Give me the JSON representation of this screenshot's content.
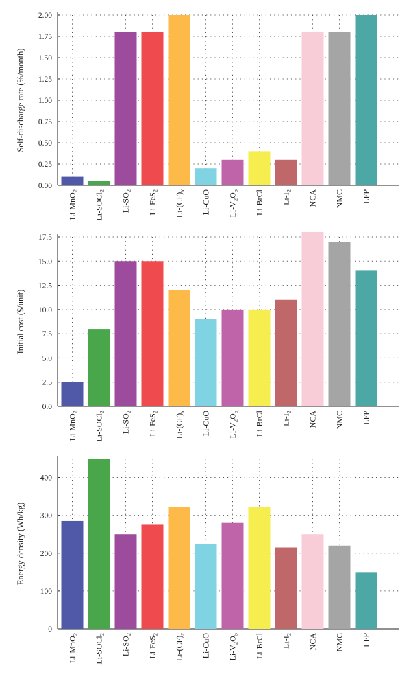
{
  "chart_data": [
    {
      "type": "bar",
      "ylabel": "Self-discharge rate (%/month)",
      "ylim": [
        0,
        2.0
      ],
      "yticks": [
        "0.00",
        "0.25",
        "0.50",
        "0.75",
        "1.00",
        "1.25",
        "1.50",
        "1.75",
        "2.00"
      ],
      "grid": true,
      "categories": [
        {
          "pre": "Li-MnO",
          "sub": "2"
        },
        {
          "pre": "Li-SOCl",
          "sub": "2"
        },
        {
          "pre": "Li-SO",
          "sub": "2"
        },
        {
          "pre": "Li-FeS",
          "sub": "2"
        },
        {
          "pre": "Li-(CF)",
          "sub": "x"
        },
        {
          "pre": "Li-CuO",
          "sub": ""
        },
        {
          "pre": "Li-V",
          "sub": "2",
          "mid": "O",
          "sub2": "5"
        },
        {
          "pre": "Li-BrCl",
          "sub": ""
        },
        {
          "pre": "Li-I",
          "sub": "2"
        },
        {
          "pre": "NCA",
          "sub": ""
        },
        {
          "pre": "NMC",
          "sub": ""
        },
        {
          "pre": "LFP",
          "sub": ""
        }
      ],
      "values": [
        0.1,
        0.05,
        1.8,
        1.8,
        2.0,
        0.2,
        0.3,
        0.4,
        0.3,
        1.8,
        1.8,
        2.0
      ]
    },
    {
      "type": "bar",
      "ylabel": "Initial cost ($/unit)",
      "ylim": [
        0,
        17.5
      ],
      "yticks": [
        "0.0",
        "2.5",
        "5.0",
        "7.5",
        "10.0",
        "12.5",
        "15.0",
        "17.5"
      ],
      "grid": true,
      "categories": [
        {
          "pre": "Li-MnO",
          "sub": "2"
        },
        {
          "pre": "Li-SOCl",
          "sub": "2"
        },
        {
          "pre": "Li-SO",
          "sub": "2"
        },
        {
          "pre": "Li-FeS",
          "sub": "2"
        },
        {
          "pre": "Li-(CF)",
          "sub": "x"
        },
        {
          "pre": "Li-CuO",
          "sub": ""
        },
        {
          "pre": "Li-V",
          "sub": "2",
          "mid": "O",
          "sub2": "5"
        },
        {
          "pre": "Li-BrCl",
          "sub": ""
        },
        {
          "pre": "Li-I",
          "sub": "2"
        },
        {
          "pre": "NCA",
          "sub": ""
        },
        {
          "pre": "NMC",
          "sub": ""
        },
        {
          "pre": "LFP",
          "sub": ""
        }
      ],
      "values": [
        2.5,
        8.0,
        15.0,
        15.0,
        12.0,
        9.0,
        10.0,
        10.0,
        11.0,
        18.0,
        17.0,
        14.0
      ]
    },
    {
      "type": "bar",
      "ylabel": "Energy density (Wh/kg)",
      "ylim": [
        0,
        450
      ],
      "yticks": [
        "0",
        "100",
        "200",
        "300",
        "400"
      ],
      "grid": true,
      "categories": [
        {
          "pre": "Li-MnO",
          "sub": "2"
        },
        {
          "pre": "Li-SOCl",
          "sub": "2"
        },
        {
          "pre": "Li-SO",
          "sub": "2"
        },
        {
          "pre": "Li-FeS",
          "sub": "2"
        },
        {
          "pre": "Li-(CF)",
          "sub": "x"
        },
        {
          "pre": "Li-CuO",
          "sub": ""
        },
        {
          "pre": "Li-V",
          "sub": "2",
          "mid": "O",
          "sub2": "5"
        },
        {
          "pre": "Li-BrCl",
          "sub": ""
        },
        {
          "pre": "Li-I",
          "sub": "2"
        },
        {
          "pre": "NCA",
          "sub": ""
        },
        {
          "pre": "NMC",
          "sub": ""
        },
        {
          "pre": "LFP",
          "sub": ""
        }
      ],
      "values": [
        285,
        450,
        250,
        275,
        322,
        225,
        280,
        322,
        215,
        250,
        220,
        150
      ]
    }
  ],
  "colors": [
    "#5059a8",
    "#4aa64a",
    "#9d4b9d",
    "#ef4b4f",
    "#fdba48",
    "#7fd3e3",
    "#c064aa",
    "#f6ed4f",
    "#c0676a",
    "#f9cdd8",
    "#a5a5a5",
    "#4ba8a4"
  ]
}
